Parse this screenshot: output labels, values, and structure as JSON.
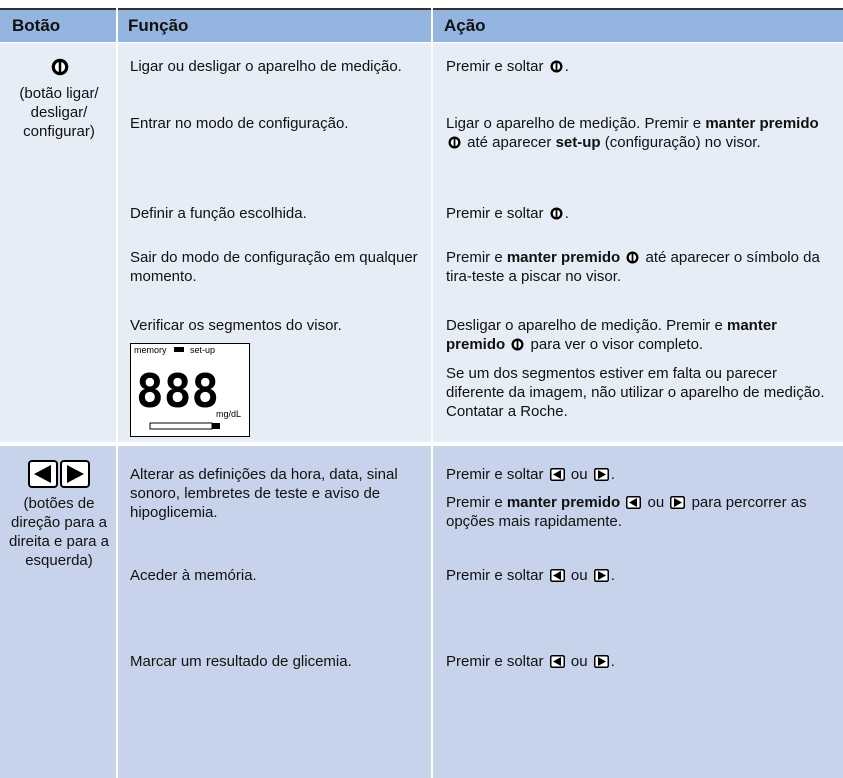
{
  "table": {
    "header": [
      "Botão",
      "Função",
      "Ação"
    ],
    "rows": [
      {
        "button": "(botão ligar/ desligar/ configurar)",
        "items": [
          {
            "function": "Ligar ou desligar o aparelho de medição.",
            "action": [
              [
                "Premir e soltar ",
                "."
              ]
            ]
          },
          {
            "function": "Entrar no modo de configuração.",
            "action": [
              [
                "Ligar o aparelho de medição. Premir e ",
                "manter premido",
                " até aparecer ",
                "set-up",
                " (configuração) no visor."
              ]
            ]
          },
          {
            "function": "Definir a função escolhida.",
            "action": [
              [
                "Premir e soltar ",
                "."
              ]
            ]
          },
          {
            "function": "Sair do modo de configuração em qualquer momento.",
            "action": [
              [
                "Premir e ",
                "manter premido",
                " até aparecer o símbolo da tira-teste a piscar no visor."
              ]
            ]
          },
          {
            "function": "Verificar os segmentos do visor.",
            "display_labels": [
              "memory",
              "set-up",
              "888",
              "mg/dL"
            ],
            "action": [
              [
                "Desligar o aparelho de medição. Premir e ",
                "manter premido",
                " para ver o visor completo."
              ],
              [
                "Se um dos segmentos estiver em falta ou parecer diferente da imagem, não utilizar o aparelho de medição. Contatar a Roche."
              ]
            ]
          }
        ]
      },
      {
        "button": "(botões de direção para a direita e para a esquerda)",
        "items": [
          {
            "function": "Alterar as definições da hora, data, sinal sonoro, lembretes de teste e aviso de hipoglicemia.",
            "action": [
              [
                "Premir e soltar ",
                " ou ",
                "."
              ],
              [
                "Premir e ",
                "manter premido",
                " ou ",
                " para percorrer as opções mais rapidamente."
              ]
            ]
          },
          {
            "function": "Aceder à memória.",
            "action": [
              [
                "Premir e soltar ",
                " ou ",
                "."
              ]
            ]
          },
          {
            "function": "Marcar um resultado de glicemia.",
            "action": [
              [
                "Premir e soltar ",
                " ou ",
                "."
              ]
            ]
          }
        ]
      }
    ]
  }
}
